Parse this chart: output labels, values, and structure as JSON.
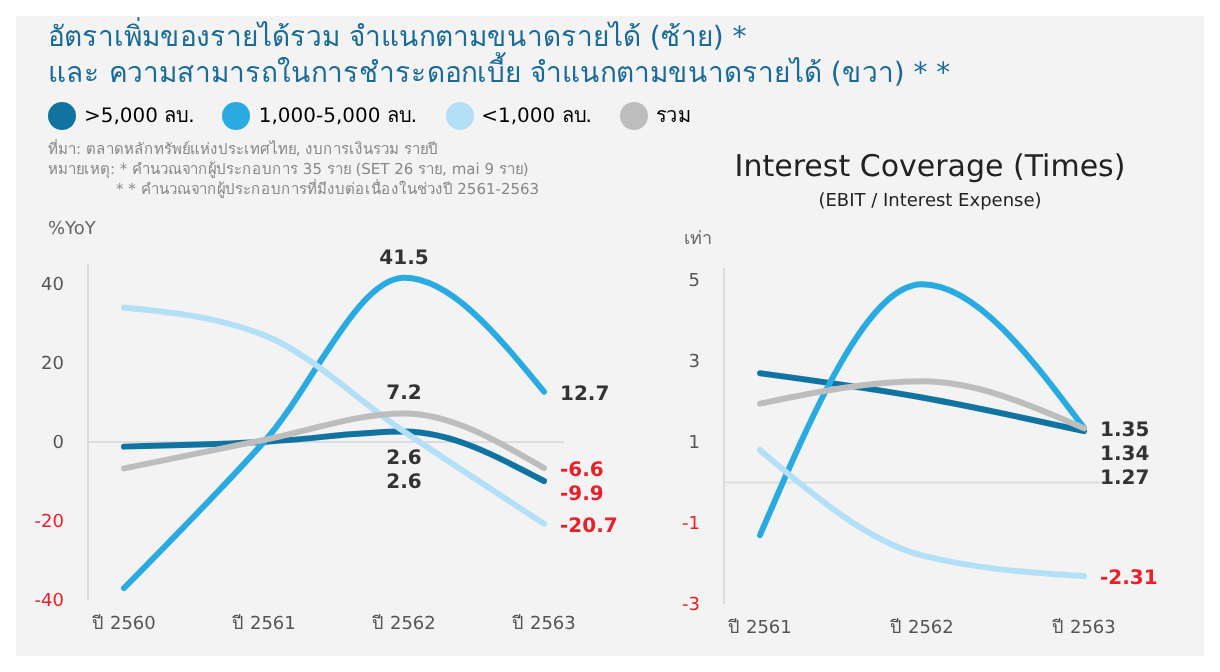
{
  "chart_data": [
    {
      "type": "line",
      "title": "อัตราเพิ่มของรายได้รวม จำแนกตามขนาดรายได้ (ซ้าย) *\nและ ความสามารถในการชำระดอกเบี้ย จำแนกตามขนาดรายได้ (ขวา) * *",
      "ylabel": "%YoY",
      "legend": "top",
      "categories": [
        "ปี 2560",
        "ปี 2561",
        "ปี 2562",
        "ปี 2563"
      ],
      "ylim": [
        -40,
        45
      ],
      "yticks": [
        -40,
        -20,
        0,
        20,
        40
      ],
      "ref_lines": [
        {
          "axis": "y",
          "value": 0,
          "color": "#dddddd"
        }
      ],
      "marker": "none",
      "annotations": [
        "ที่มา: ตลาดหลักทรัพย์แห่งประเทศไทย, งบการเงินรวม รายปี",
        "หมายเหตุ: * คำนวณจากผู้ประกอบการ 35 ราย (SET 26 ราย, mai 9 ราย)",
        "* * คำนวณจากผู้ประกอบการที่มีงบต่อเนื่องในช่วงปี 2561-2563"
      ],
      "series": [
        {
          "name": ">5,000 ลบ.",
          "color": "#11739f",
          "values": [
            -1.2,
            0,
            2.6,
            -9.9
          ],
          "value_labels": [
            null,
            null,
            "2.6",
            "-9.9"
          ]
        },
        {
          "name": "1,000-5,000 ลบ.",
          "color": "#29abe2",
          "values": [
            -37,
            0,
            41.5,
            12.7
          ],
          "value_labels": [
            null,
            null,
            "41.5",
            "12.7"
          ]
        },
        {
          "name": "<1,000 ลบ.",
          "color": "#b3e0f6",
          "values": [
            34,
            27,
            2.6,
            -20.7
          ],
          "value_labels": [
            null,
            null,
            "2.6",
            "-20.7"
          ]
        },
        {
          "name": "รวม",
          "color": "#bdbdbd",
          "values": [
            -6.7,
            0.5,
            7.2,
            -6.6
          ],
          "value_labels": [
            null,
            null,
            "7.2",
            "-6.6"
          ]
        }
      ]
    },
    {
      "type": "line",
      "title": "Interest Coverage (Times)",
      "subtitle": "(EBIT / Interest Expense)",
      "ylabel": "เท่า",
      "legend": false,
      "categories": [
        "ปี 2561",
        "ปี 2562",
        "ปี 2563"
      ],
      "ylim": [
        -3,
        5.3
      ],
      "yticks": [
        -3,
        -1,
        1,
        3,
        5
      ],
      "ref_lines": [
        {
          "axis": "y",
          "value": 0,
          "color": "#dddddd"
        }
      ],
      "marker": "none",
      "series": [
        {
          "color": "#11739f",
          "values": [
            2.7,
            2.1,
            1.27
          ],
          "value_labels": [
            null,
            null,
            "1.27"
          ]
        },
        {
          "color": "#29abe2",
          "values": [
            -1.3,
            4.9,
            1.35
          ],
          "value_labels": [
            null,
            null,
            "1.35"
          ]
        },
        {
          "color": "#b3e0f6",
          "values": [
            0.8,
            -1.8,
            -2.31
          ],
          "value_labels": [
            null,
            null,
            "-2.31"
          ]
        },
        {
          "color": "#bdbdbd",
          "values": [
            1.95,
            2.5,
            1.34
          ],
          "value_labels": [
            null,
            null,
            "1.34"
          ]
        }
      ]
    }
  ]
}
